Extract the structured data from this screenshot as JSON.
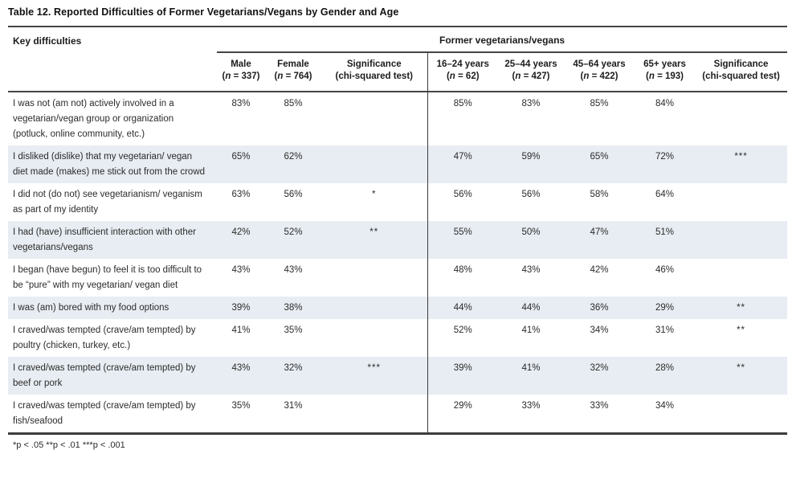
{
  "title": "Table 12. Reported Difficulties of Former Vegetarians/Vegans by Gender and Age",
  "colors": {
    "row_shade": "#e8edf3",
    "rule": "#454545",
    "text": "#2b2b2b"
  },
  "table": {
    "key_header": "Key difficulties",
    "group_header": "Former vegetarians/vegans",
    "columns": [
      {
        "label": "Male",
        "n": "337"
      },
      {
        "label": "Female",
        "n": "764"
      },
      {
        "label": "Significance",
        "sub": "(chi-squared test)"
      },
      {
        "label": "16–24 years",
        "n": "62"
      },
      {
        "label": "25–44 years",
        "n": "427"
      },
      {
        "label": "45–64 years",
        "n": "422"
      },
      {
        "label": "65+ years",
        "n": "193"
      },
      {
        "label": "Significance",
        "sub": "(chi-squared test)"
      }
    ],
    "rows": [
      {
        "difficulty": "I was not (am not) actively involved in a vegetarian/vegan group or organization (potluck, online community, etc.)",
        "values": [
          "83%",
          "85%",
          "",
          "85%",
          "83%",
          "85%",
          "84%",
          ""
        ],
        "shaded": false
      },
      {
        "difficulty": "I disliked (dislike) that my vegetarian/ vegan diet made (makes) me stick out from the crowd",
        "values": [
          "65%",
          "62%",
          "",
          "47%",
          "59%",
          "65%",
          "72%",
          "***"
        ],
        "shaded": true
      },
      {
        "difficulty": "I did not (do not) see vegetarianism/ veganism as part of my identity",
        "values": [
          "63%",
          "56%",
          "*",
          "56%",
          "56%",
          "58%",
          "64%",
          ""
        ],
        "shaded": false
      },
      {
        "difficulty": "I had (have) insufficient interaction with other vegetarians/vegans",
        "values": [
          "42%",
          "52%",
          "**",
          "55%",
          "50%",
          "47%",
          "51%",
          ""
        ],
        "shaded": true
      },
      {
        "difficulty": "I began (have begun) to feel it is too difficult to be “pure” with my vegetarian/ vegan diet",
        "values": [
          "43%",
          "43%",
          "",
          "48%",
          "43%",
          "42%",
          "46%",
          ""
        ],
        "shaded": false
      },
      {
        "difficulty": "I was (am) bored with my food options",
        "values": [
          "39%",
          "38%",
          "",
          "44%",
          "44%",
          "36%",
          "29%",
          "**"
        ],
        "shaded": true
      },
      {
        "difficulty": "I craved/was tempted (crave/am tempted) by poultry (chicken, turkey, etc.)",
        "values": [
          "41%",
          "35%",
          "",
          "52%",
          "41%",
          "34%",
          "31%",
          "**"
        ],
        "shaded": false
      },
      {
        "difficulty": "I craved/was tempted (crave/am tempted) by beef or pork",
        "values": [
          "43%",
          "32%",
          "***",
          "39%",
          "41%",
          "32%",
          "28%",
          "**"
        ],
        "shaded": true
      },
      {
        "difficulty": "I craved/was tempted (crave/am tempted) by fish/seafood",
        "values": [
          "35%",
          "31%",
          "",
          "29%",
          "33%",
          "33%",
          "34%",
          ""
        ],
        "shaded": false
      }
    ],
    "footnote": "*p < .05 **p < .01 ***p < .001"
  }
}
